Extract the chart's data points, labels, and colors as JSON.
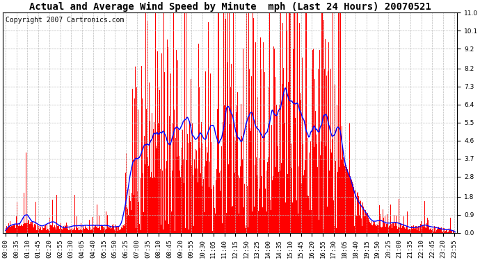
{
  "title": "Actual and Average Wind Speed by Minute  mph (Last 24 Hours) 20070521",
  "copyright": "Copyright 2007 Cartronics.com",
  "yticks": [
    0.0,
    0.9,
    1.8,
    2.8,
    3.7,
    4.6,
    5.5,
    6.4,
    7.3,
    8.2,
    9.2,
    10.1,
    11.0
  ],
  "ylim": [
    0.0,
    11.0
  ],
  "bar_color": "#FF0000",
  "line_color": "#0000FF",
  "bg_color": "#FFFFFF",
  "grid_color": "#BBBBBB",
  "title_fontsize": 10,
  "copyright_fontsize": 7,
  "tick_fontsize": 6.5
}
